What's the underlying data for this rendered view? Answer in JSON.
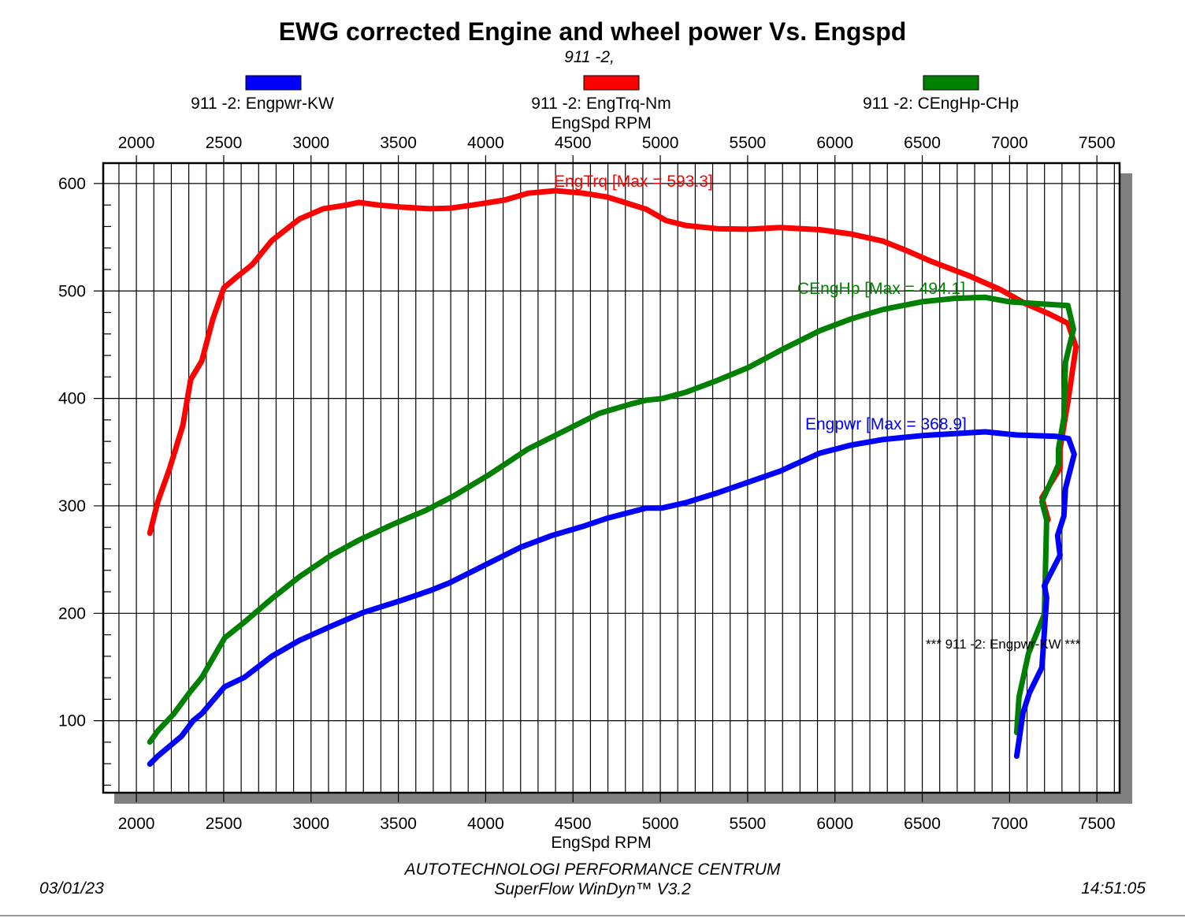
{
  "chart_data": {
    "type": "line",
    "title": "EWG corrected Engine and wheel power Vs. Engspd",
    "subtitle": "911 -2,",
    "xlabel": "EngSpd RPM",
    "xlabel_top": "EngSpd RPM",
    "ylabel": "",
    "xlim": [
      1810,
      7630
    ],
    "ylim": [
      33,
      619
    ],
    "x_ticks": [
      2000,
      2500,
      3000,
      3500,
      4000,
      4500,
      5000,
      5500,
      6000,
      6500,
      7000,
      7500
    ],
    "y_ticks": [
      100,
      200,
      300,
      400,
      500,
      600
    ],
    "grid": true,
    "legend_position": "top",
    "series": [
      {
        "name": "911 -2: Engpwr-KW",
        "color": "#0000ff",
        "max_label": "Engpwr [Max = 368.9]",
        "points": [
          [
            2077,
            59.7
          ],
          [
            2122,
            67
          ],
          [
            2257,
            85.4
          ],
          [
            2325,
            100
          ],
          [
            2375,
            106.6
          ],
          [
            2505,
            131.6
          ],
          [
            2618,
            140.4
          ],
          [
            2776,
            160
          ],
          [
            2934,
            174.8
          ],
          [
            3115,
            188
          ],
          [
            3295,
            200.5
          ],
          [
            3521,
            212.2
          ],
          [
            3679,
            221
          ],
          [
            3792,
            228.3
          ],
          [
            4017,
            246.6
          ],
          [
            4198,
            261.3
          ],
          [
            4378,
            272.3
          ],
          [
            4559,
            281
          ],
          [
            4694,
            288.4
          ],
          [
            4920,
            298
          ],
          [
            5010,
            298
          ],
          [
            5146,
            303
          ],
          [
            5326,
            312
          ],
          [
            5507,
            322.2
          ],
          [
            5687,
            332.4
          ],
          [
            5913,
            349
          ],
          [
            6093,
            356.6
          ],
          [
            6274,
            361.7
          ],
          [
            6499,
            365.4
          ],
          [
            6860,
            368.9
          ],
          [
            7041,
            366
          ],
          [
            7266,
            364.7
          ],
          [
            7338,
            362.5
          ],
          [
            7370,
            348
          ],
          [
            7320,
            316.3
          ],
          [
            7311,
            290.6
          ],
          [
            7275,
            272.3
          ],
          [
            7289,
            254
          ],
          [
            7199,
            225.7
          ],
          [
            7212,
            214.6
          ],
          [
            7185,
            149.6
          ],
          [
            7113,
            125.7
          ],
          [
            7077,
            107.4
          ],
          [
            7041,
            67
          ]
        ]
      },
      {
        "name": "911 -2: EngTrq-Nm",
        "color": "#ff0000",
        "max_label": "EngTrq [Max = 593.3]",
        "points": [
          [
            2077,
            274.5
          ],
          [
            2122,
            303.8
          ],
          [
            2190,
            334.6
          ],
          [
            2266,
            374.9
          ],
          [
            2311,
            417.5
          ],
          [
            2375,
            435
          ],
          [
            2438,
            474
          ],
          [
            2501,
            503
          ],
          [
            2573,
            512.8
          ],
          [
            2663,
            524.5
          ],
          [
            2776,
            547
          ],
          [
            2934,
            567
          ],
          [
            3070,
            576.5
          ],
          [
            3205,
            580
          ],
          [
            3273,
            582.4
          ],
          [
            3385,
            580
          ],
          [
            3521,
            578
          ],
          [
            3679,
            576.5
          ],
          [
            3792,
            577
          ],
          [
            3927,
            580
          ],
          [
            4108,
            584.6
          ],
          [
            4243,
            591
          ],
          [
            4401,
            593.3
          ],
          [
            4559,
            591
          ],
          [
            4694,
            587.5
          ],
          [
            4785,
            583
          ],
          [
            4920,
            576
          ],
          [
            5033,
            565.5
          ],
          [
            5146,
            561
          ],
          [
            5326,
            558
          ],
          [
            5507,
            557.5
          ],
          [
            5687,
            559
          ],
          [
            5913,
            557
          ],
          [
            6093,
            553
          ],
          [
            6274,
            546.5
          ],
          [
            6409,
            537.7
          ],
          [
            6545,
            528
          ],
          [
            6770,
            514
          ],
          [
            6951,
            501
          ],
          [
            7086,
            488.6
          ],
          [
            7222,
            479
          ],
          [
            7334,
            470
          ],
          [
            7380,
            448
          ],
          [
            7334,
            397
          ],
          [
            7289,
            353
          ],
          [
            7289,
            335
          ],
          [
            7185,
            307.5
          ],
          [
            7221,
            287
          ]
        ]
      },
      {
        "name": "911 -2: CEngHp-CHp",
        "color": "#008000",
        "max_label": "CEngHp [Max = 494.1]",
        "points": [
          [
            2077,
            80.2
          ],
          [
            2122,
            90.5
          ],
          [
            2212,
            106
          ],
          [
            2302,
            125.7
          ],
          [
            2375,
            140.3
          ],
          [
            2505,
            177
          ],
          [
            2618,
            191.7
          ],
          [
            2776,
            213.7
          ],
          [
            2934,
            234
          ],
          [
            3115,
            254
          ],
          [
            3273,
            268
          ],
          [
            3476,
            283.3
          ],
          [
            3656,
            295.7
          ],
          [
            3814,
            309
          ],
          [
            4017,
            328.7
          ],
          [
            4243,
            353
          ],
          [
            4424,
            367.6
          ],
          [
            4649,
            386
          ],
          [
            4830,
            394.7
          ],
          [
            4920,
            398.4
          ],
          [
            5010,
            399.8
          ],
          [
            5146,
            405.7
          ],
          [
            5326,
            416.7
          ],
          [
            5507,
            429
          ],
          [
            5687,
            444.6
          ],
          [
            5913,
            463
          ],
          [
            6093,
            474
          ],
          [
            6274,
            482.7
          ],
          [
            6499,
            490
          ],
          [
            6680,
            493
          ],
          [
            6860,
            494.1
          ],
          [
            6996,
            490
          ],
          [
            7176,
            488
          ],
          [
            7334,
            486.4
          ],
          [
            7366,
            464.4
          ],
          [
            7320,
            433.6
          ],
          [
            7311,
            382
          ],
          [
            7280,
            353
          ],
          [
            7280,
            338.3
          ],
          [
            7185,
            304
          ],
          [
            7212,
            287
          ],
          [
            7199,
            199
          ],
          [
            7108,
            162.4
          ],
          [
            7054,
            122
          ],
          [
            7041,
            89
          ]
        ]
      }
    ],
    "annotation": "*** 911 -2: Engpwr-KW          ***"
  },
  "footer": {
    "date": "03/01/23",
    "company": "AUTOTECHNOLOGI PERFORMANCE CENTRUM",
    "software": "SuperFlow WinDyn™  V3.2",
    "time": "14:51:05"
  }
}
